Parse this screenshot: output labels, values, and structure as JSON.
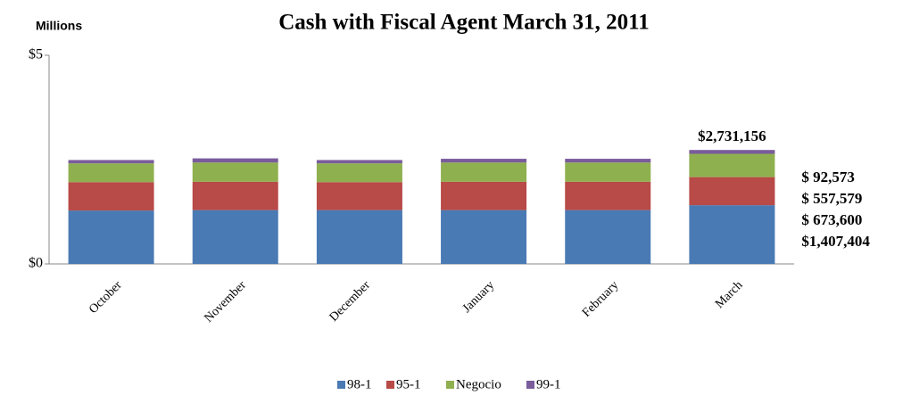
{
  "chart_data": {
    "type": "stacked_bar",
    "title": "Cash with Fiscal Agent March 31, 2011",
    "y_axis_label": "Millions",
    "categories": [
      "October",
      "November",
      "December",
      "January",
      "February",
      "March"
    ],
    "series": [
      {
        "name": "98-1",
        "color": "#4a7ab4",
        "values": [
          1.28,
          1.29,
          1.29,
          1.29,
          1.29,
          1.407404
        ],
        "value_labels": [
          null,
          null,
          null,
          null,
          null,
          "$1,407,404"
        ]
      },
      {
        "name": "95-1",
        "color": "#b84a47",
        "values": [
          0.68,
          0.68,
          0.67,
          0.68,
          0.68,
          0.6736
        ],
        "value_labels": [
          null,
          null,
          null,
          null,
          null,
          "$ 673,600"
        ]
      },
      {
        "name": "Negocio",
        "color": "#8fb04f",
        "values": [
          0.45,
          0.46,
          0.45,
          0.46,
          0.46,
          0.557579
        ],
        "value_labels": [
          null,
          null,
          null,
          null,
          null,
          "$ 557,579"
        ]
      },
      {
        "name": "99-1",
        "color": "#7a5c9c",
        "values": [
          0.08,
          0.1,
          0.08,
          0.09,
          0.09,
          0.092573
        ],
        "value_labels": [
          null,
          null,
          null,
          null,
          null,
          "$ 92,573"
        ]
      }
    ],
    "annotations": [
      {
        "category": 5,
        "text": "$2,731,156"
      }
    ],
    "ylim": [
      0,
      5
    ],
    "yticks": [
      {
        "value": 0,
        "label": "$0"
      },
      {
        "value": 5,
        "label": "$5"
      }
    ],
    "legend": "bottom"
  }
}
